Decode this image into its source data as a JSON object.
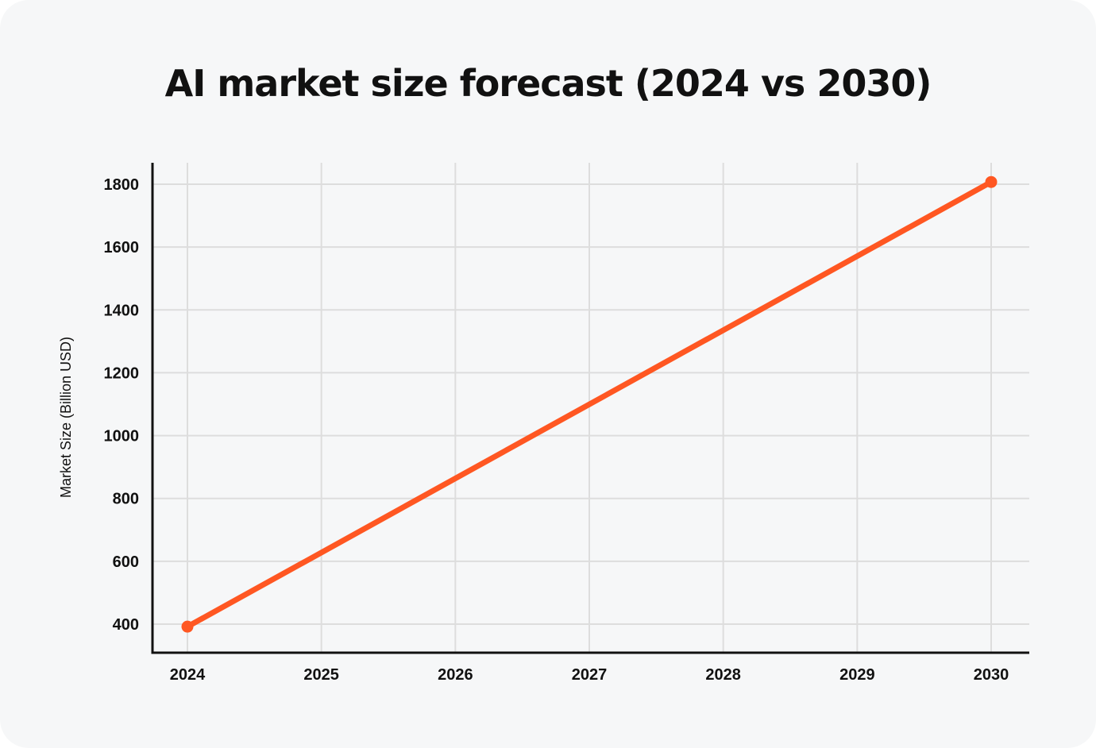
{
  "chart_data": {
    "type": "line",
    "title": "AI market size forecast (2024 vs 2030)",
    "xlabel": "",
    "ylabel": "Market Size (Billion USD)",
    "categories": [
      "2024",
      "2025",
      "2026",
      "2027",
      "2028",
      "2029",
      "2030"
    ],
    "series": [
      {
        "name": "AI market size",
        "color": "#ff5722",
        "points": [
          {
            "x": "2024",
            "y": 392
          },
          {
            "x": "2030",
            "y": 1807
          }
        ]
      }
    ],
    "yticks": [
      400,
      600,
      800,
      1000,
      1200,
      1400,
      1600,
      1800
    ],
    "ylim": [
      310,
      1870
    ],
    "grid": true,
    "colors": {
      "background": "#f6f7f8",
      "grid": "#dddddd",
      "axis": "#111111",
      "line": "#ff5722"
    }
  }
}
